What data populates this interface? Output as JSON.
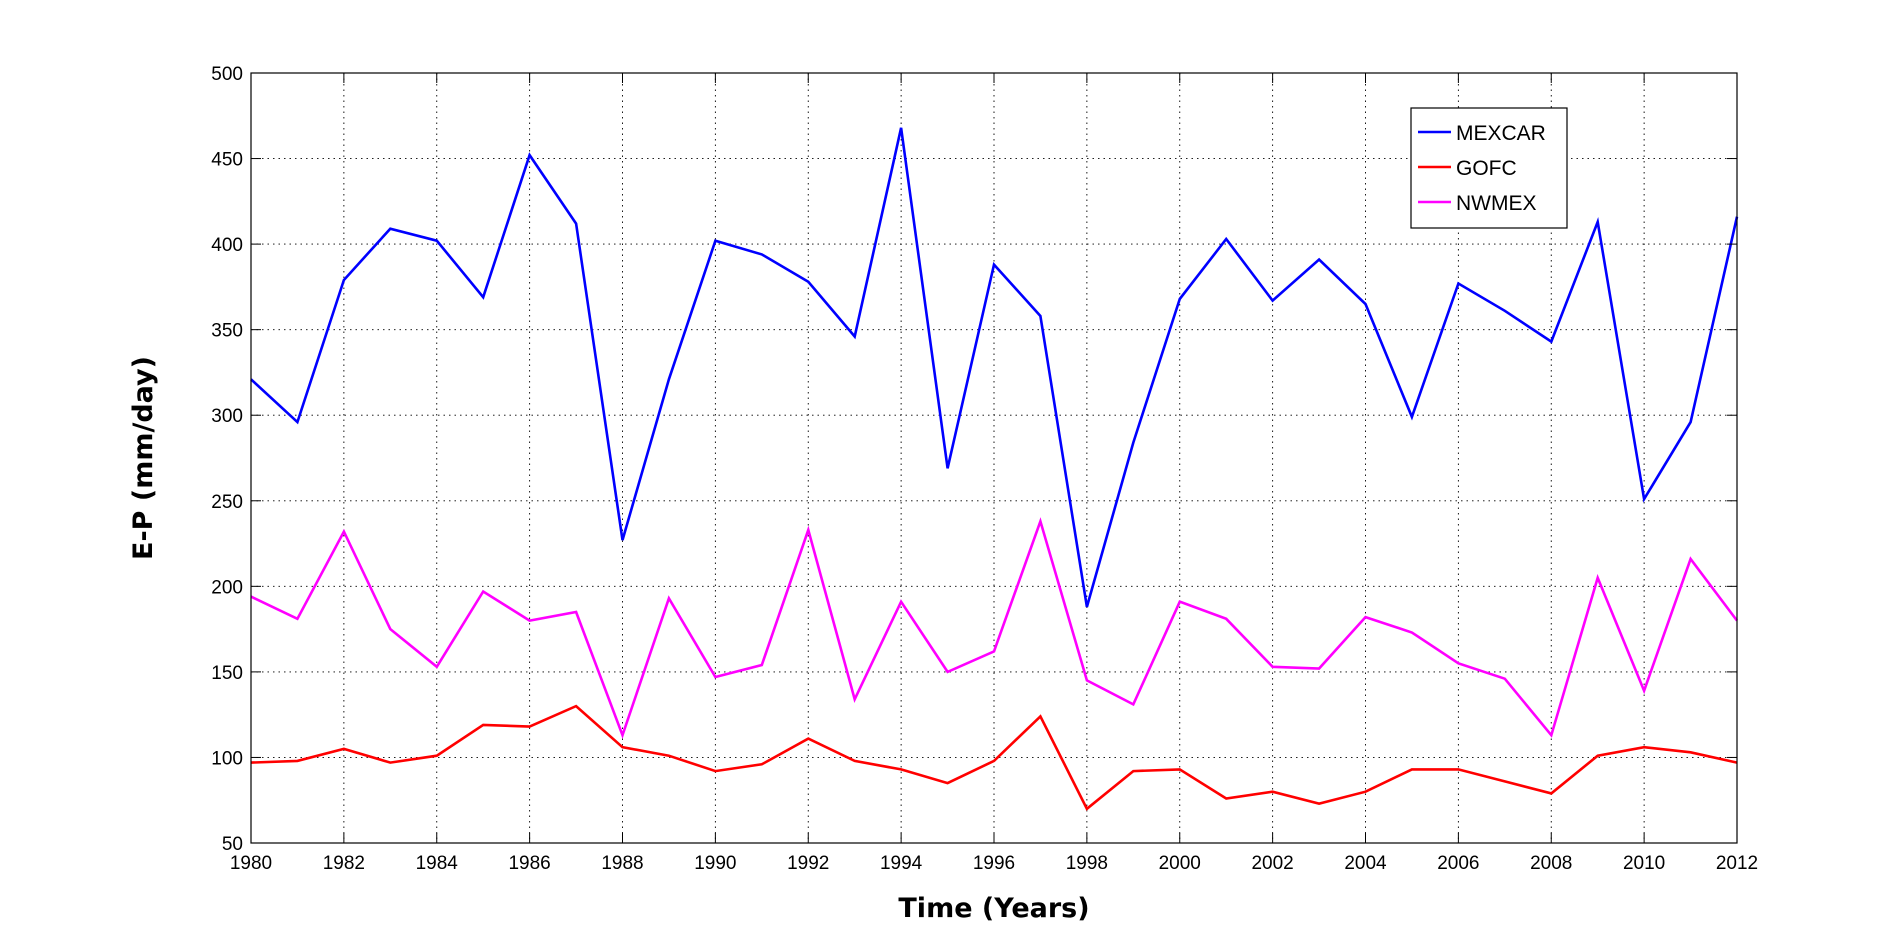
{
  "chart_data": {
    "type": "line",
    "xlabel": "Time (Years)",
    "ylabel": "E-P (mm/day)",
    "xlim": [
      1980,
      2012
    ],
    "ylim": [
      50,
      500
    ],
    "xticks": [
      1980,
      1982,
      1984,
      1986,
      1988,
      1990,
      1992,
      1994,
      1996,
      1998,
      2000,
      2002,
      2004,
      2006,
      2008,
      2010,
      2012
    ],
    "yticks": [
      50,
      100,
      150,
      200,
      250,
      300,
      350,
      400,
      450,
      500
    ],
    "grid": true,
    "legend_position": "top-right",
    "x": [
      1980,
      1981,
      1982,
      1983,
      1984,
      1985,
      1986,
      1987,
      1988,
      1989,
      1990,
      1991,
      1992,
      1993,
      1994,
      1995,
      1996,
      1997,
      1998,
      1999,
      2000,
      2001,
      2002,
      2003,
      2004,
      2005,
      2006,
      2007,
      2008,
      2009,
      2010,
      2011,
      2012
    ],
    "series": [
      {
        "name": "MEXCAR",
        "color": "#0000ff",
        "values": [
          321,
          296,
          379,
          409,
          402,
          369,
          452,
          412,
          227,
          321,
          402,
          394,
          378,
          346,
          468,
          269,
          388,
          358,
          188,
          284,
          368,
          403,
          367,
          391,
          365,
          299,
          377,
          361,
          343,
          413,
          251,
          296,
          416
        ]
      },
      {
        "name": "GOFC",
        "color": "#ff0000",
        "values": [
          97,
          98,
          105,
          97,
          101,
          119,
          118,
          130,
          106,
          101,
          92,
          96,
          111,
          98,
          93,
          85,
          98,
          124,
          70,
          92,
          93,
          76,
          80,
          73,
          80,
          93,
          93,
          86,
          79,
          101,
          106,
          103,
          97
        ]
      },
      {
        "name": "NWMEX",
        "color": "#ff00ff",
        "values": [
          194,
          181,
          232,
          175,
          153,
          197,
          180,
          185,
          113,
          193,
          147,
          154,
          233,
          134,
          191,
          150,
          162,
          238,
          145,
          131,
          191,
          181,
          153,
          152,
          182,
          173,
          155,
          146,
          113,
          205,
          139,
          216,
          180
        ]
      }
    ]
  }
}
